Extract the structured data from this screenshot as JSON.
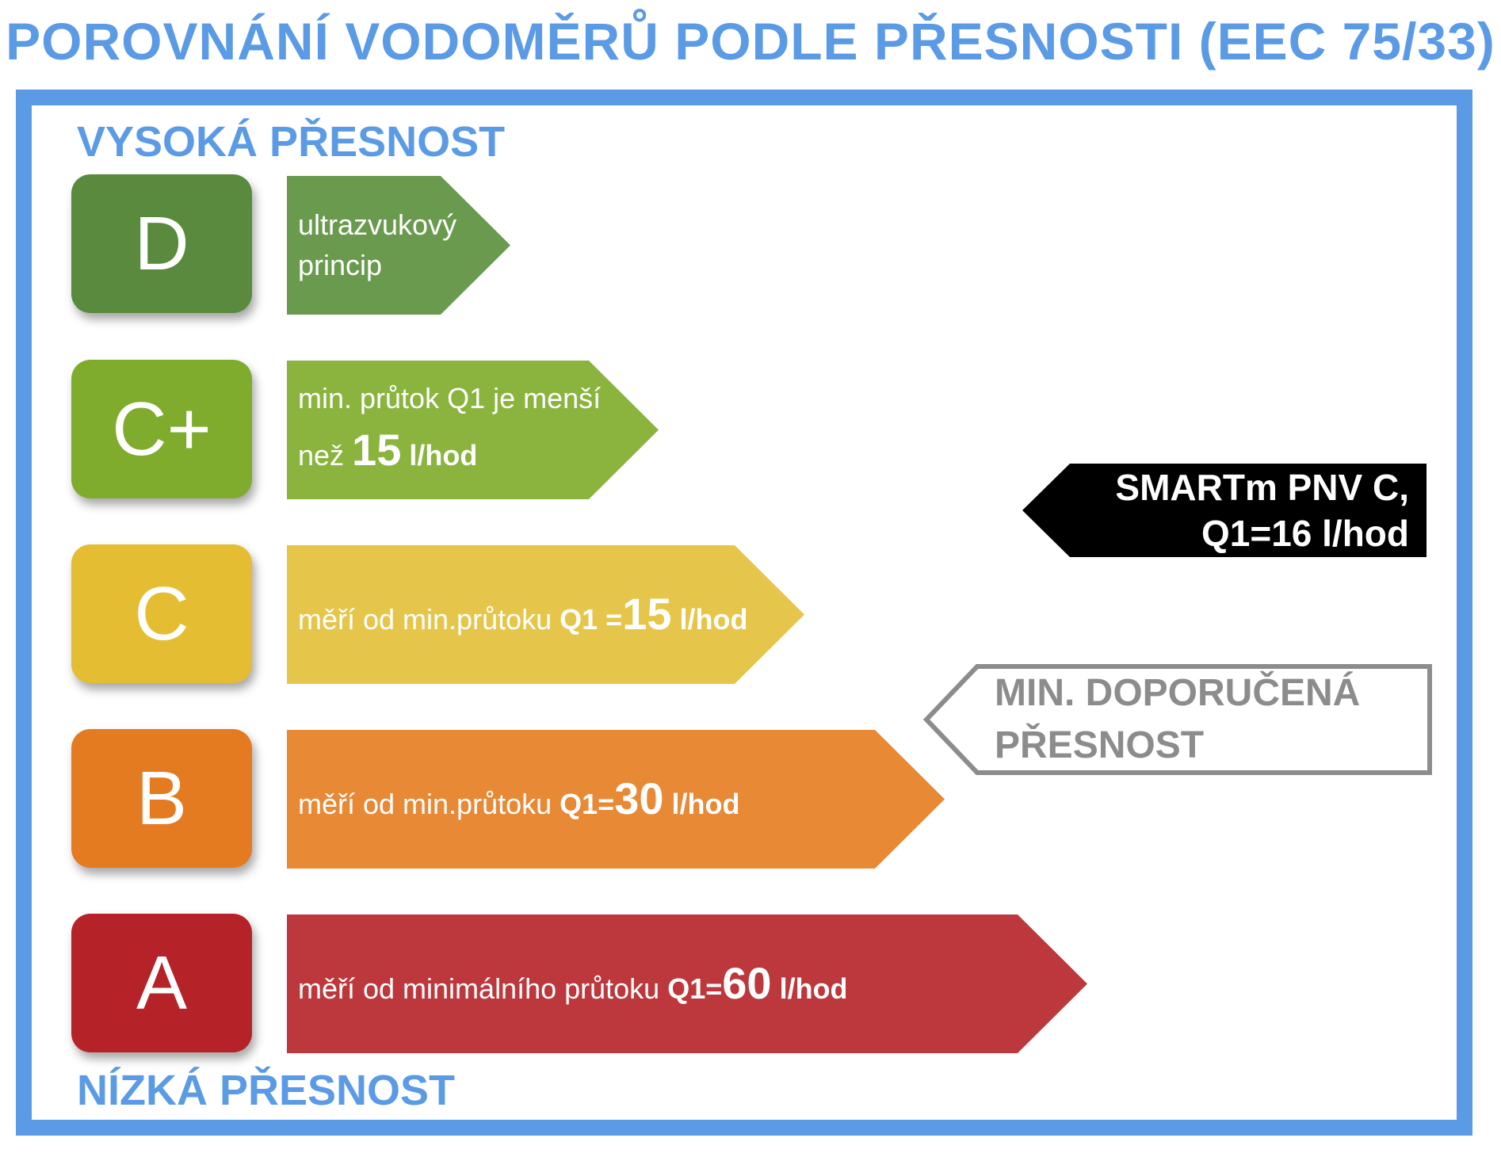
{
  "title": "POROVNÁNÍ VODOMĚRŮ PODLE PŘESNOSTI (EEC 75/33)",
  "top_label": "VYSOKÁ PŘESNOST",
  "bottom_label": "NÍZKÁ PŘESNOST",
  "grades": [
    {
      "letter": "D",
      "color": "#5a8a3e",
      "arrow_color": "#6a9a4e",
      "line1": "ultrazvukový",
      "line2": "princip"
    },
    {
      "letter": "C+",
      "color": "#80ac2e",
      "arrow_color": "#8ab43e",
      "line1": "min. průtok Q1 je menší",
      "line2_pre": "než ",
      "line2_big": "15",
      "line2_post": " l/hod"
    },
    {
      "letter": "C",
      "color": "#e4bd33",
      "arrow_color": "#e6c64a",
      "text_pre": "měří od min.průtoku ",
      "text_bold": "Q1 =",
      "text_big": "15",
      "text_post": " l/hod"
    },
    {
      "letter": "B",
      "color": "#e57b21",
      "arrow_color": "#e78935",
      "text_pre": "měří od min.průtoku ",
      "text_bold": "Q1=",
      "text_big": "30",
      "text_post": " l/hod"
    },
    {
      "letter": "A",
      "color": "#b52228",
      "arrow_color": "#bc383c",
      "text_pre": "měří od minimálního průtoku ",
      "text_bold": "Q1=",
      "text_big": "60",
      "text_post": " l/hod"
    }
  ],
  "smartm_callout": {
    "line1": "SMARTm PNV C,",
    "line2": "Q1=16 l/hod",
    "color": "#000000"
  },
  "recommended_callout": {
    "line1": "MIN. DOPORUČENÁ",
    "line2": "PŘESNOST",
    "color": "#8c8c8c"
  }
}
